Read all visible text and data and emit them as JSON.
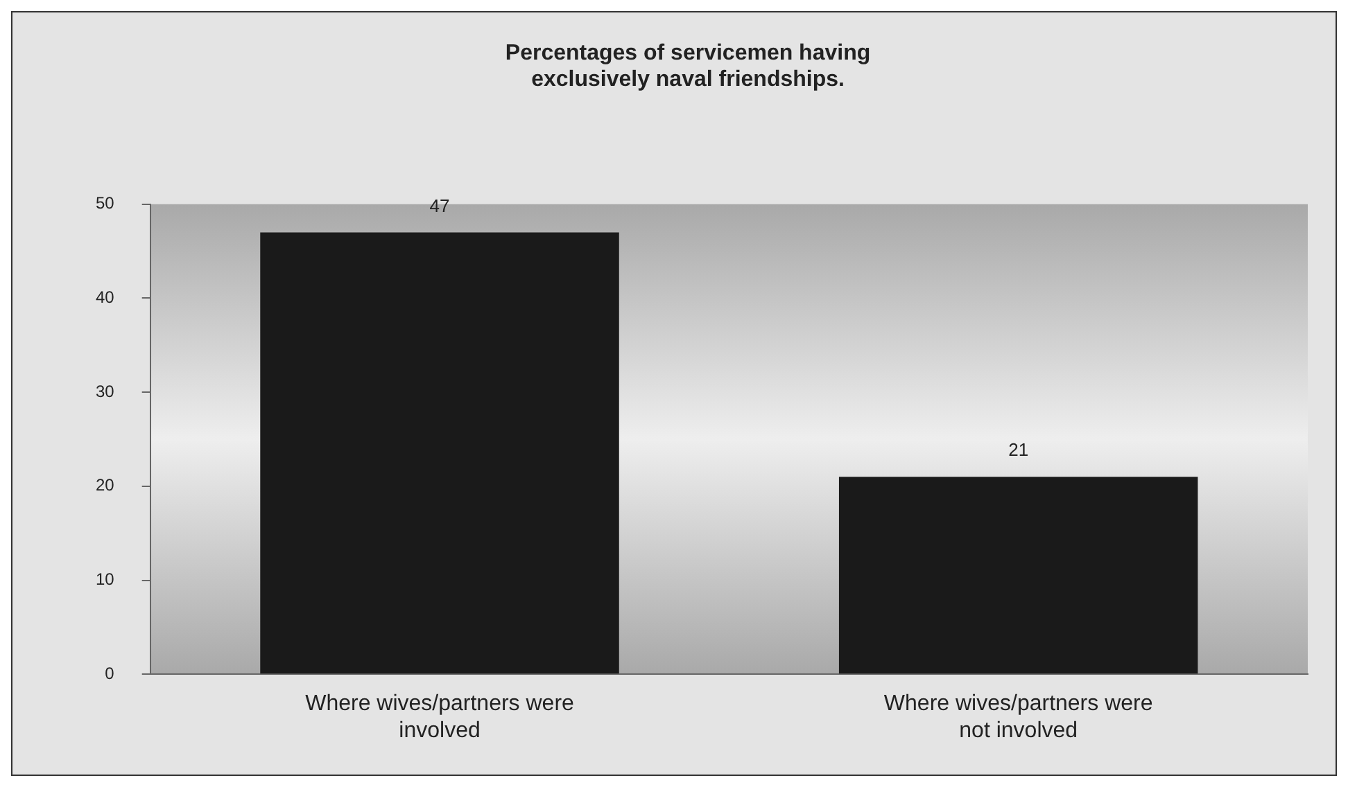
{
  "chart_data": {
    "type": "bar",
    "title": "Percentages of servicemen having\nexclusively naval friendships.",
    "categories": [
      "Where wives/partners were\ninvolved",
      "Where wives/partners were\nnot involved"
    ],
    "values": [
      47,
      21
    ],
    "color": "#1a1a1a",
    "ylim": [
      0,
      50
    ],
    "yticks": [
      0,
      10,
      20,
      30,
      40,
      50
    ],
    "grid": false,
    "legend": false,
    "data_labels": true
  }
}
